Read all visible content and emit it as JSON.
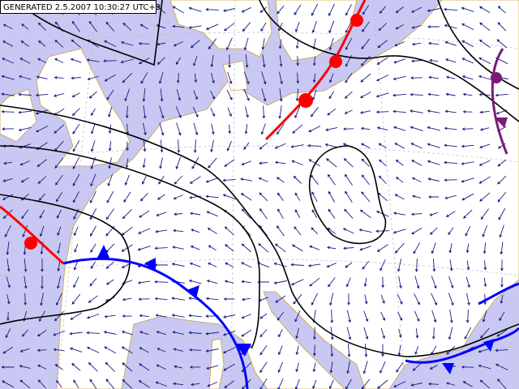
{
  "header": {
    "stamp": "GENERATED 2.5.2007 10:30:27 UTC+3"
  }
}
